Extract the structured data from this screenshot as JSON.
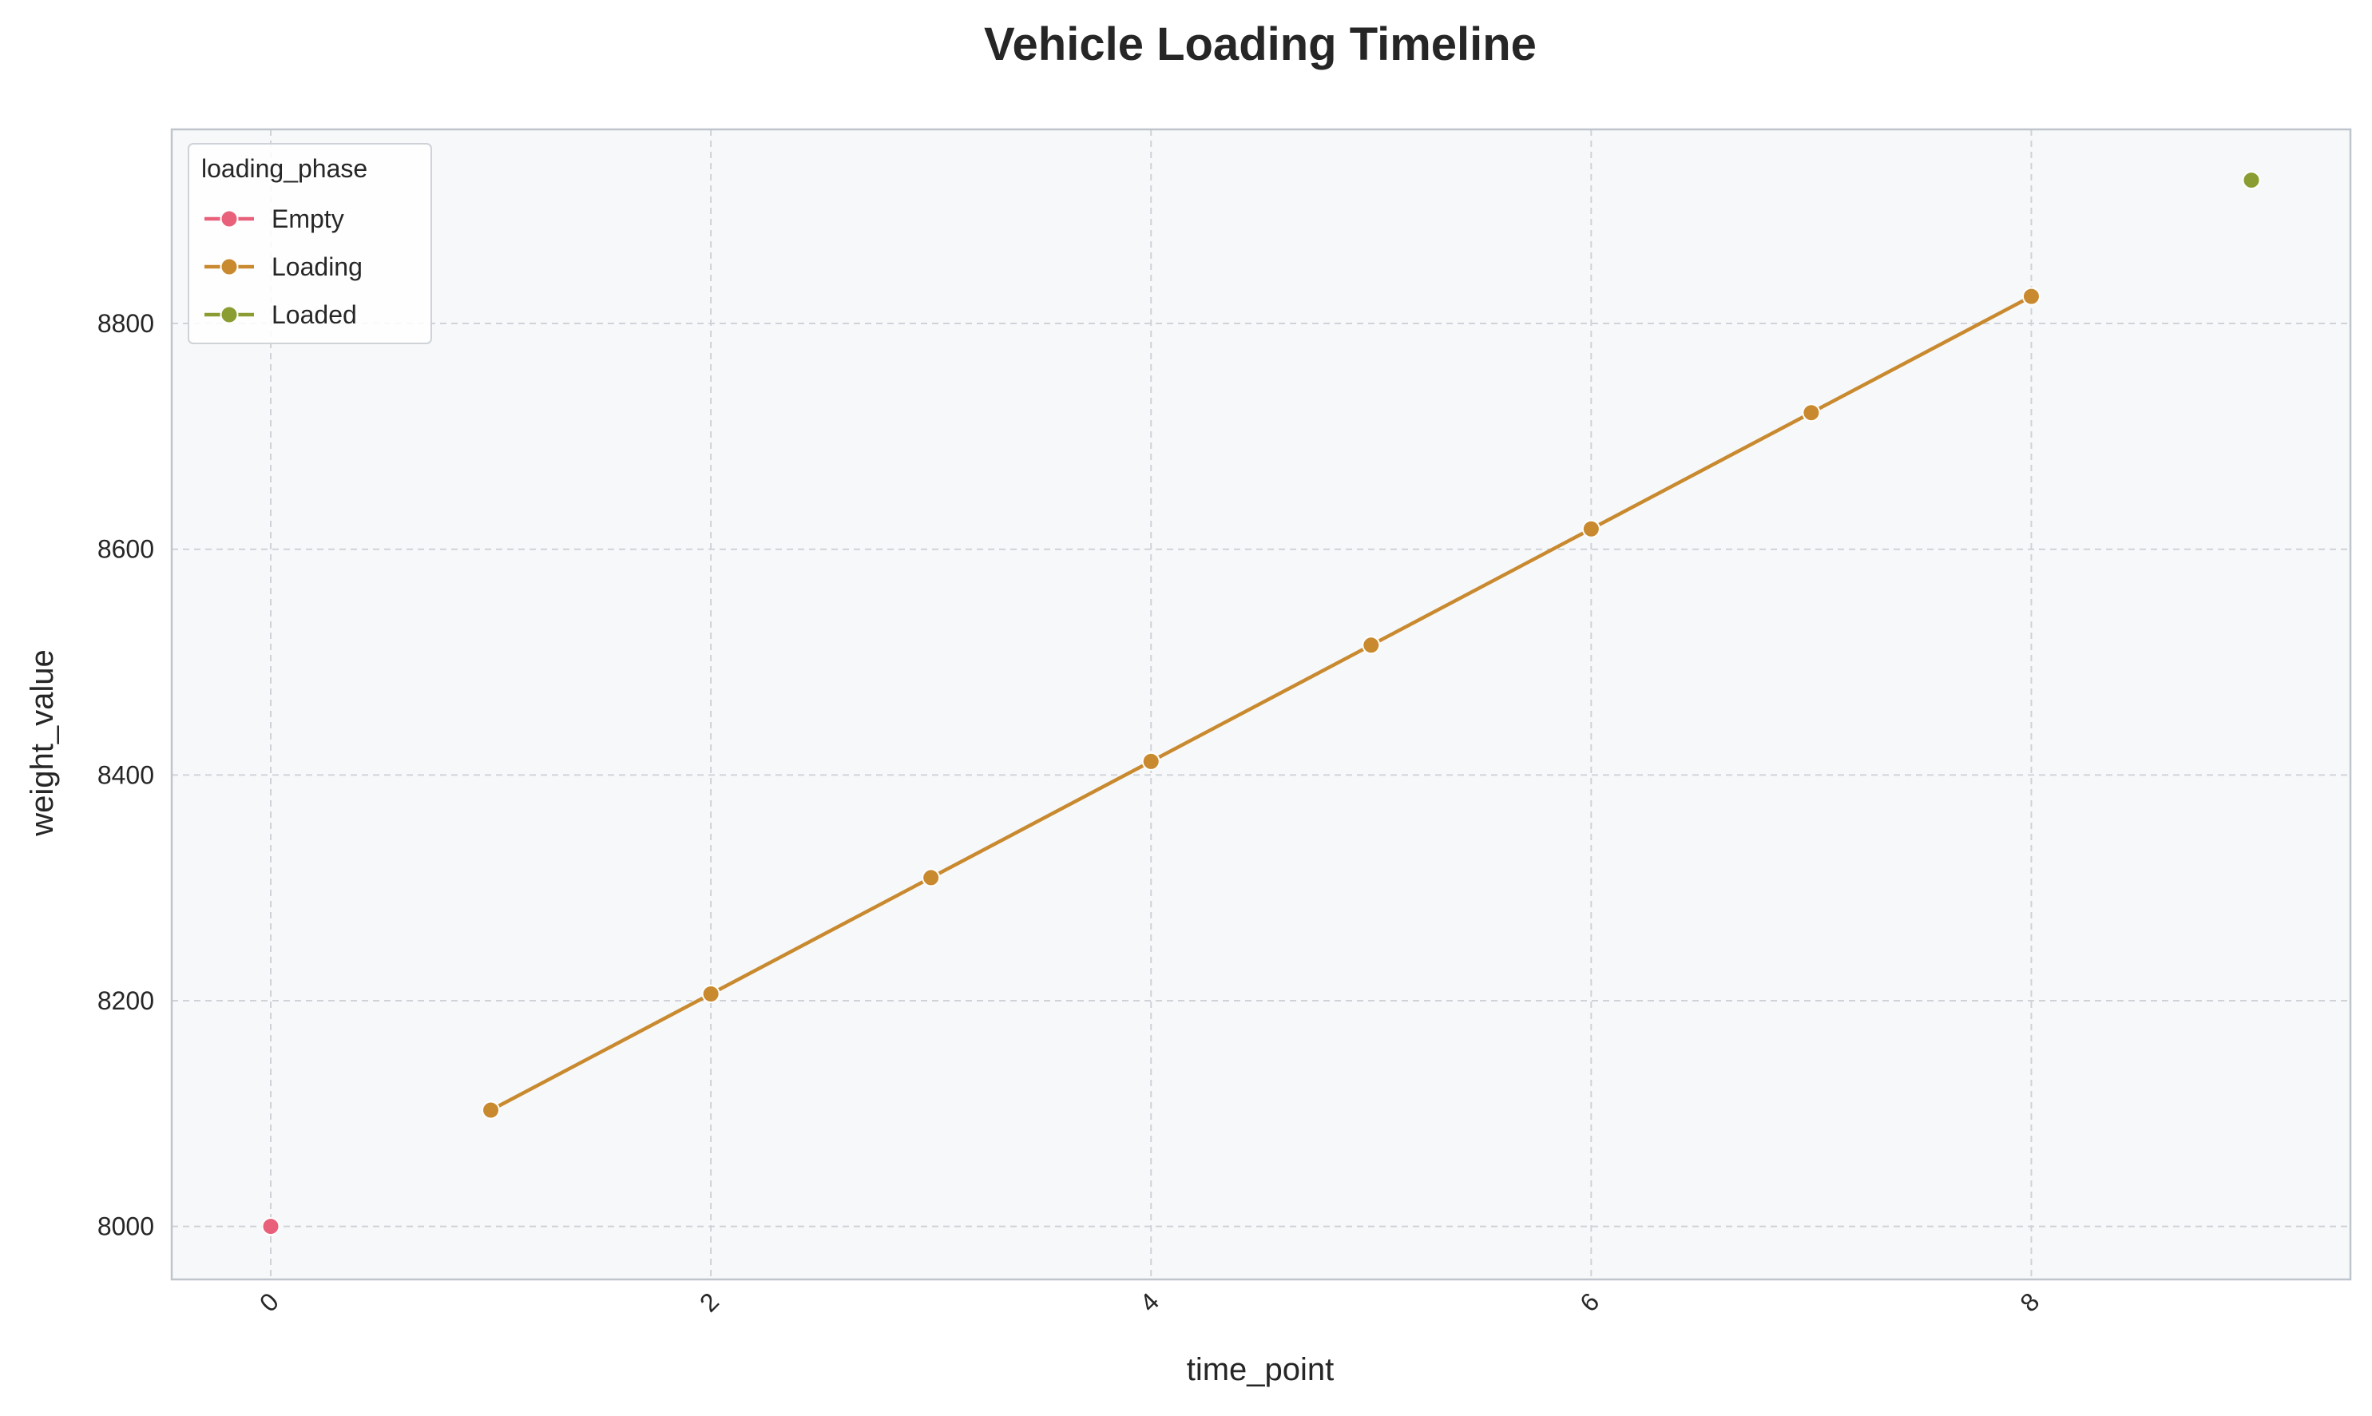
{
  "chart_data": {
    "type": "line",
    "title": "Vehicle Loading Timeline",
    "xlabel": "time_point",
    "ylabel": "weight_value",
    "xlim": [
      -0.45,
      9.45
    ],
    "ylim": [
      7953,
      8972
    ],
    "x_ticks": [
      0,
      2,
      4,
      6,
      8
    ],
    "x_tick_labels": [
      "0",
      "2",
      "4",
      "6",
      "8"
    ],
    "y_ticks": [
      8000,
      8200,
      8400,
      8600,
      8800
    ],
    "y_tick_labels": [
      "8000",
      "8200",
      "8400",
      "8600",
      "8800"
    ],
    "grid": true,
    "legend": {
      "title": "loading_phase",
      "placement": "top-left"
    },
    "series": [
      {
        "name": "Empty",
        "color": "#e8607a",
        "x": [
          0
        ],
        "y": [
          8000
        ]
      },
      {
        "name": "Loading",
        "color": "#c98a2f",
        "x": [
          1,
          2,
          3,
          4,
          5,
          6,
          7,
          8
        ],
        "y": [
          8103,
          8206,
          8309,
          8412,
          8515,
          8618,
          8721,
          8824
        ]
      },
      {
        "name": "Loaded",
        "color": "#8a9d32",
        "x": [
          9
        ],
        "y": [
          8927
        ]
      }
    ],
    "colors": {
      "plot_background": "#f7f8fa",
      "grid": "#cfd3d8",
      "axes_edge": "#bfc5cc"
    }
  }
}
